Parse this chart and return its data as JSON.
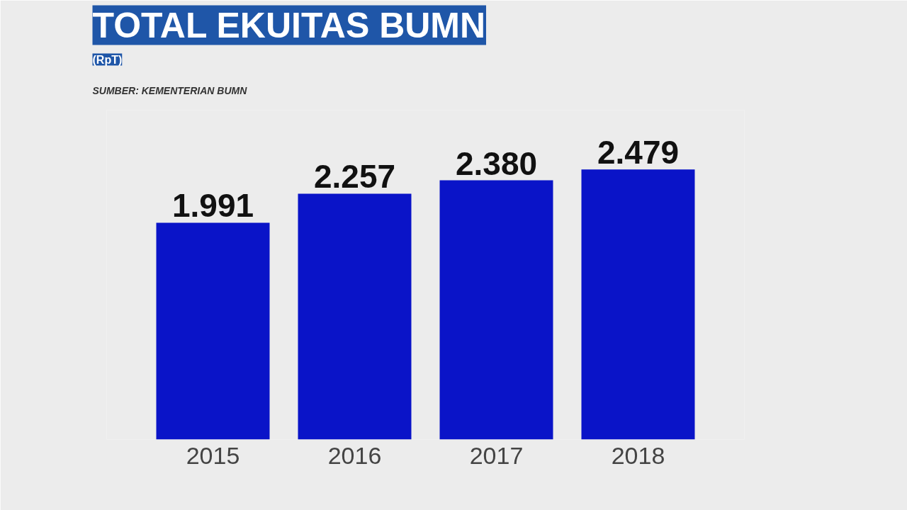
{
  "chart_data": {
    "type": "bar",
    "title": "TOTAL EKUITAS BUMN",
    "subtitle": "(RpT)",
    "annotations": [
      "SUMBER: KEMENTERIAN BUMN"
    ],
    "categories": [
      "2015",
      "2016",
      "2017",
      "2018"
    ],
    "values": [
      1991,
      2257,
      2380,
      2479
    ],
    "value_labels": [
      "1.991",
      "2.257",
      "2.380",
      "2.479"
    ],
    "color": "#0a14c8",
    "grid": false
  }
}
